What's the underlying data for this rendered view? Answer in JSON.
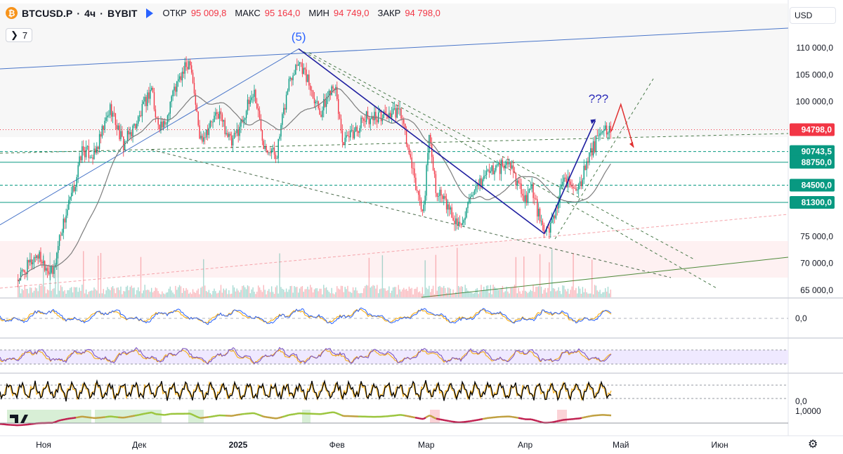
{
  "header": {
    "symbol": "BTCUSD.P",
    "interval": "4ч",
    "exchange": "BYBIT",
    "sep": "·",
    "open_label": "ОТКР",
    "open_value": "95 009,8",
    "high_label": "МАКС",
    "high_value": "95 164,0",
    "low_label": "МИН",
    "low_value": "94 749,0",
    "close_label": "ЗАКР",
    "close_value": "94 798,0",
    "coin_icon": "bitcoin-icon",
    "indicator_toggle_icon": "chevron-icon",
    "indicator_count": "7",
    "down_color": "#f23645"
  },
  "currency": "USD",
  "logo_icon": "tradingview-logo-icon",
  "settings_icon": "gear-icon",
  "chart_data": {
    "type": "candlestick",
    "x_labels": [
      "Ноя",
      "Дек",
      "2025",
      "Фев",
      "Мар",
      "Апр",
      "Май",
      "Июн"
    ],
    "y_ticks": [
      "110 000,0",
      "105 000,0",
      "100 000,0",
      "75 000,0",
      "70 000,0",
      "65 000,0"
    ],
    "ylim": [
      65000,
      110000
    ],
    "price_path": [
      [
        "2024-10-24",
        67000
      ],
      [
        "2024-10-30",
        71800
      ],
      [
        "2024-11-04",
        67800
      ],
      [
        "2024-11-06",
        75000
      ],
      [
        "2024-11-11",
        85000
      ],
      [
        "2024-11-13",
        91000
      ],
      [
        "2024-11-17",
        90000
      ],
      [
        "2024-11-22",
        99000
      ],
      [
        "2024-11-26",
        92000
      ],
      [
        "2024-12-01",
        97000
      ],
      [
        "2024-12-05",
        103000
      ],
      [
        "2024-12-06",
        97000
      ],
      [
        "2024-12-09",
        95000
      ],
      [
        "2024-12-11",
        101000
      ],
      [
        "2024-12-17",
        108000
      ],
      [
        "2024-12-20",
        93000
      ],
      [
        "2024-12-26",
        98000
      ],
      [
        "2024-12-30",
        92000
      ],
      [
        "2025-01-06",
        102000
      ],
      [
        "2025-01-09",
        92500
      ],
      [
        "2025-01-13",
        90000
      ],
      [
        "2025-01-17",
        104000
      ],
      [
        "2025-01-20",
        108000
      ],
      [
        "2025-01-27",
        98000
      ],
      [
        "2025-01-31",
        104000
      ],
      [
        "2025-02-03",
        92000
      ],
      [
        "2025-02-10",
        97000
      ],
      [
        "2025-02-21",
        98000
      ],
      [
        "2025-02-25",
        86000
      ],
      [
        "2025-02-28",
        79000
      ],
      [
        "2025-03-02",
        94000
      ],
      [
        "2025-03-04",
        84000
      ],
      [
        "2025-03-11",
        77000
      ],
      [
        "2025-03-20",
        87000
      ],
      [
        "2025-03-27",
        88500
      ],
      [
        "2025-04-01",
        82000
      ],
      [
        "2025-04-03",
        84000
      ],
      [
        "2025-04-07",
        75000
      ],
      [
        "2025-04-09",
        77000
      ],
      [
        "2025-04-13",
        85000
      ],
      [
        "2025-04-18",
        84500
      ],
      [
        "2025-04-22",
        91000
      ],
      [
        "2025-04-25",
        94500
      ],
      [
        "2025-04-28",
        94798
      ]
    ],
    "price_lines": [
      {
        "label": "94798,0",
        "value": 94798,
        "color": "#f23645",
        "style": "dotted"
      },
      {
        "label": "90743,5",
        "value": 90743.5,
        "color": "#089981",
        "style": "dashed"
      },
      {
        "label": "88750,0",
        "value": 88750,
        "color": "#089981",
        "style": "solid"
      },
      {
        "label": "84500,0",
        "value": 84500,
        "color": "#089981",
        "style": "dashed"
      },
      {
        "label": "81300,0",
        "value": 81300,
        "color": "#089981",
        "style": "solid"
      }
    ],
    "annotations": [
      {
        "text": "(5)",
        "color": "#2962ff",
        "date": "2025-01-20",
        "price": 111300
      },
      {
        "text": "???",
        "color": "#2929b8",
        "date": "2025-04-24",
        "price": 99800
      }
    ],
    "wave_lines": [
      {
        "from": [
          "2025-01-20",
          109800
        ],
        "to": [
          "2025-04-07",
          75500
        ],
        "color": "#1f1fa0"
      },
      {
        "from": [
          "2025-04-07",
          75500
        ],
        "to": [
          "2025-04-23",
          96500
        ],
        "color": "#1f1fa0"
      }
    ],
    "projection": {
      "points": [
        [
          "2025-04-28",
          94500
        ],
        [
          "2025-05-01",
          99500
        ],
        [
          "2025-05-05",
          91500
        ]
      ],
      "color": "#e03030"
    },
    "oscillator_zero_label": "0,0",
    "extra_axis_label": "1,0000",
    "colors": {
      "up": "#089981",
      "down": "#f23645",
      "ma": "#7d7d7d",
      "trend": "#4a76c9",
      "green_line": "#4f8a3b"
    }
  }
}
